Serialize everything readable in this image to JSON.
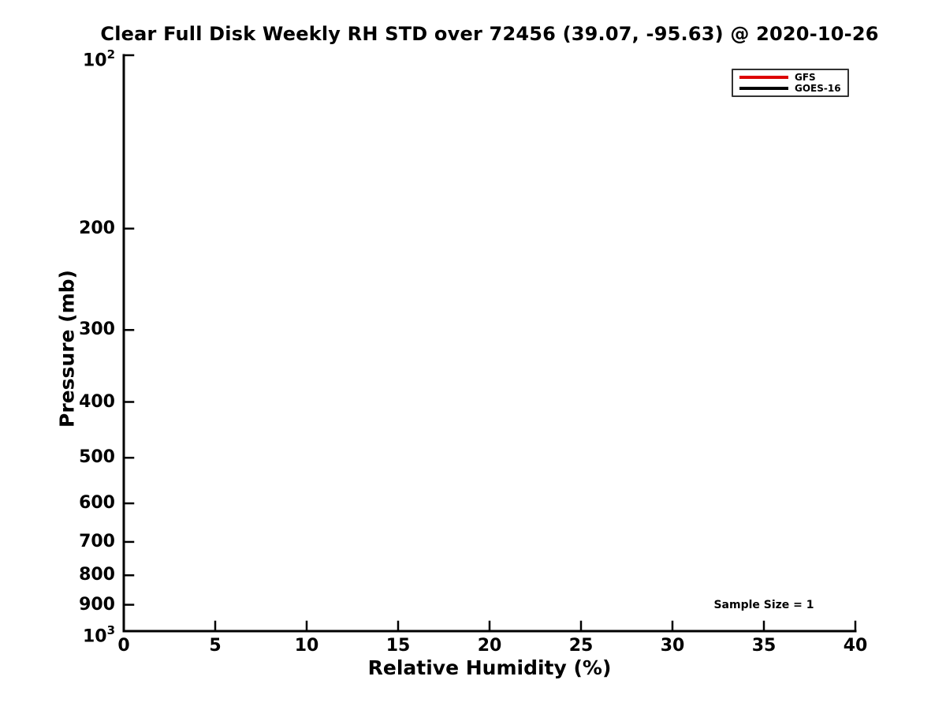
{
  "figure": {
    "background": "#ffffff",
    "text_color": "#000000"
  },
  "chart_data": {
    "type": "line",
    "title": "Clear Full Disk Weekly RH STD over 72456 (39.07, -95.63) @ 2020-10-26",
    "xlabel": "Relative Humidity (%)",
    "ylabel": "Pressure (mb)",
    "xlim": [
      0,
      40
    ],
    "x_ticks": [
      0,
      5,
      10,
      15,
      20,
      25,
      30,
      35,
      40
    ],
    "ylim": [
      100,
      1000
    ],
    "y_scale": "log",
    "y_axis_direction": "increasing-downward",
    "grid": false,
    "y_ticks": [
      {
        "value": 100,
        "label": "10^2"
      },
      {
        "value": 200,
        "label": "200"
      },
      {
        "value": 300,
        "label": "300"
      },
      {
        "value": 400,
        "label": "400"
      },
      {
        "value": 500,
        "label": "500"
      },
      {
        "value": 600,
        "label": "600"
      },
      {
        "value": 700,
        "label": "700"
      },
      {
        "value": 800,
        "label": "800"
      },
      {
        "value": 900,
        "label": "900"
      },
      {
        "value": 1000,
        "label": "10^3"
      }
    ],
    "legend": {
      "position": "top-right",
      "entries": [
        {
          "label": "GFS",
          "color": "#dd0000"
        },
        {
          "label": "GOES-16",
          "color": "#000000"
        }
      ]
    },
    "series": [
      {
        "name": "GFS",
        "color": "#dd0000",
        "x": [],
        "y": []
      },
      {
        "name": "GOES-16",
        "color": "#000000",
        "x": [],
        "y": []
      }
    ],
    "annotations": [
      {
        "text": "Sample Size = 1",
        "x": 35,
        "y": 900
      }
    ],
    "axis_color": "#000000"
  }
}
